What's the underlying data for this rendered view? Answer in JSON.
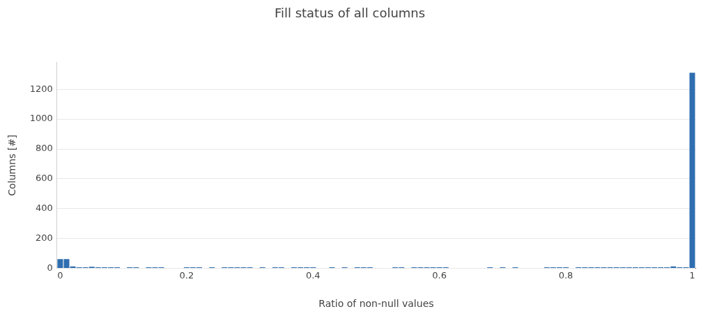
{
  "chart_data": {
    "type": "histogram",
    "title": "Fill status of all columns",
    "xlabel": "Ratio of non-null values",
    "ylabel": "Columns [#]",
    "bins": [
      -0.005,
      0.005,
      0.015,
      0.025,
      0.035,
      0.045,
      0.055,
      0.065,
      0.075,
      0.085,
      0.095,
      0.105,
      0.115,
      0.125,
      0.135,
      0.145,
      0.155,
      0.165,
      0.175,
      0.185,
      0.195,
      0.205,
      0.215,
      0.225,
      0.235,
      0.245,
      0.255,
      0.265,
      0.275,
      0.285,
      0.295,
      0.305,
      0.315,
      0.325,
      0.335,
      0.345,
      0.355,
      0.365,
      0.375,
      0.385,
      0.395,
      0.405,
      0.415,
      0.425,
      0.435,
      0.445,
      0.455,
      0.465,
      0.475,
      0.485,
      0.495,
      0.505,
      0.515,
      0.525,
      0.535,
      0.545,
      0.555,
      0.565,
      0.575,
      0.585,
      0.595,
      0.605,
      0.615,
      0.625,
      0.635,
      0.645,
      0.655,
      0.665,
      0.675,
      0.685,
      0.695,
      0.705,
      0.715,
      0.725,
      0.735,
      0.745,
      0.755,
      0.765,
      0.775,
      0.785,
      0.795,
      0.805,
      0.815,
      0.825,
      0.835,
      0.845,
      0.855,
      0.865,
      0.875,
      0.885,
      0.895,
      0.905,
      0.915,
      0.925,
      0.935,
      0.945,
      0.955,
      0.965,
      0.975,
      0.985,
      0.995,
      1.005
    ],
    "values": [
      62,
      62,
      13,
      8,
      8,
      11,
      8,
      8,
      8,
      8,
      0,
      8,
      8,
      0,
      8,
      8,
      8,
      0,
      0,
      0,
      8,
      8,
      8,
      0,
      8,
      0,
      8,
      8,
      8,
      8,
      8,
      0,
      8,
      0,
      8,
      8,
      0,
      8,
      8,
      8,
      8,
      0,
      0,
      8,
      0,
      8,
      0,
      8,
      8,
      8,
      0,
      0,
      0,
      8,
      8,
      0,
      8,
      8,
      8,
      8,
      8,
      8,
      0,
      0,
      0,
      0,
      0,
      0,
      8,
      0,
      8,
      0,
      8,
      0,
      0,
      0,
      0,
      8,
      8,
      8,
      8,
      0,
      8,
      8,
      8,
      8,
      8,
      8,
      8,
      8,
      8,
      8,
      8,
      8,
      8,
      8,
      8,
      13,
      8,
      8,
      1311
    ],
    "color": "#2f6eb0",
    "xlim": [
      -0.005,
      1.005
    ],
    "ylim": [
      0,
      1380
    ],
    "xticks": [
      0,
      0.2,
      0.4,
      0.6,
      0.8,
      1
    ],
    "yticks": [
      0,
      200,
      400,
      600,
      800,
      1000,
      1200
    ],
    "grid": "y",
    "legend": false
  }
}
